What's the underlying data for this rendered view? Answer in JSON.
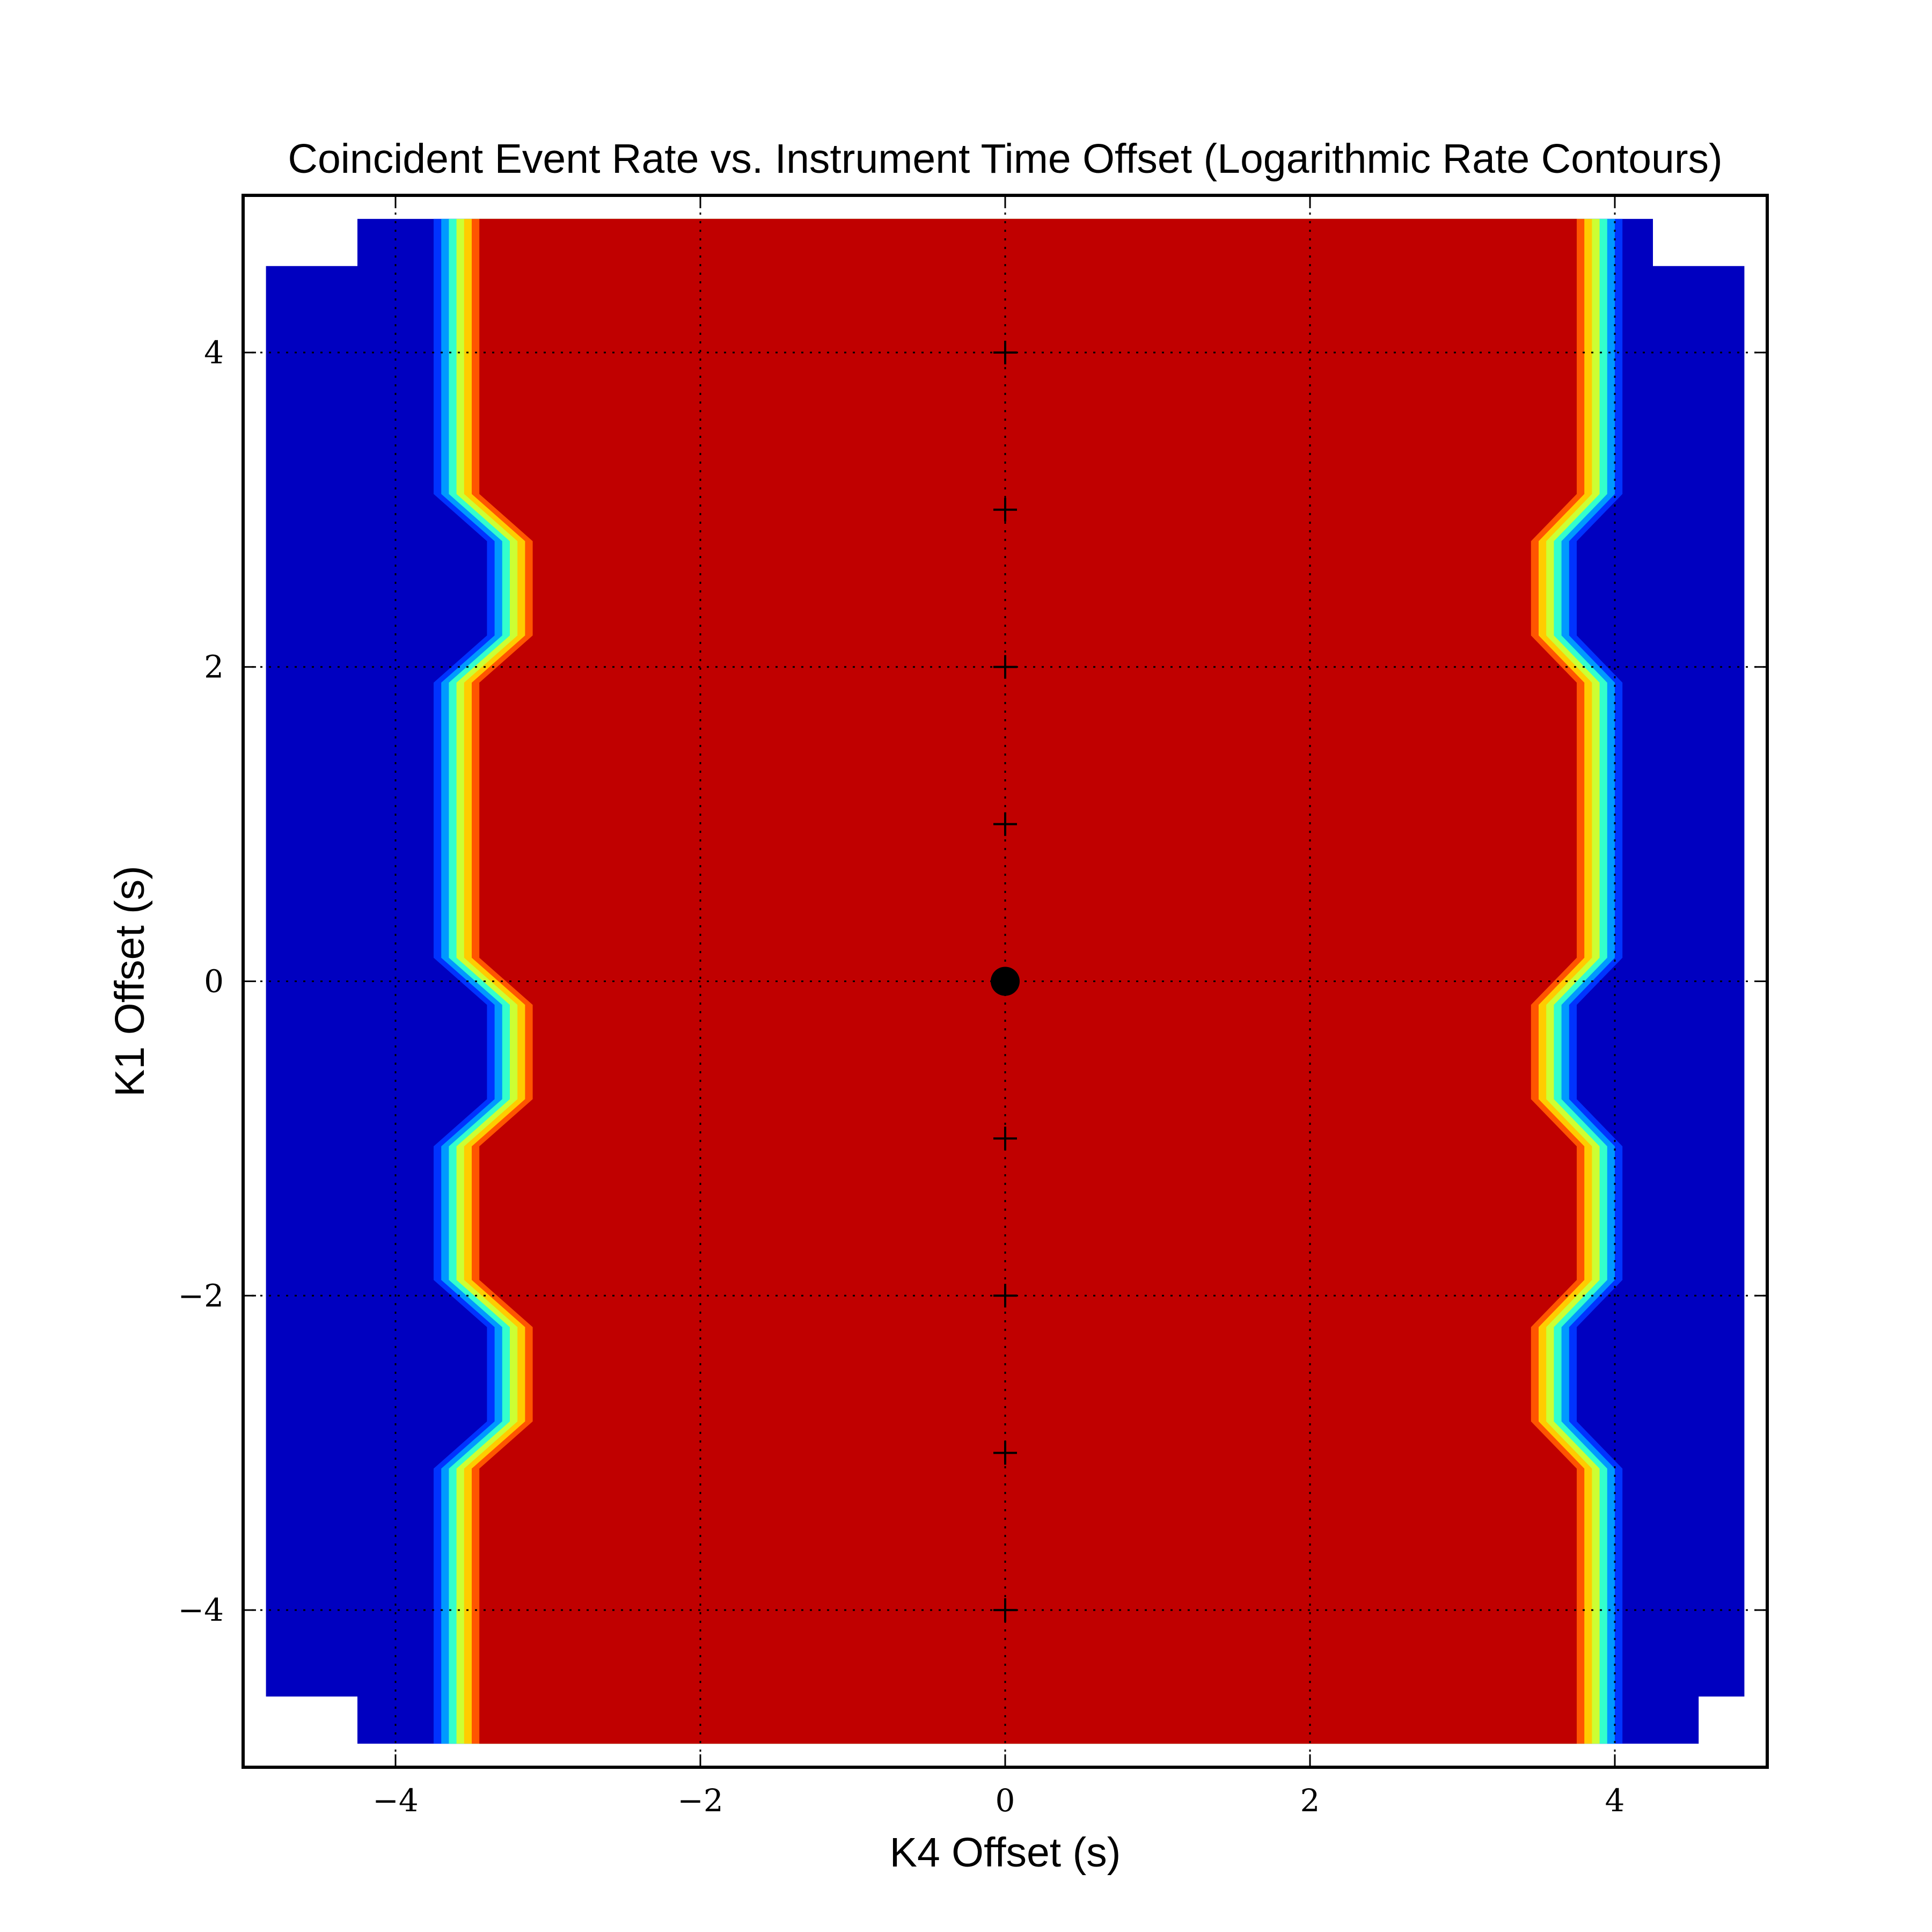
{
  "chart_data": {
    "type": "contour",
    "title": "Coincident Event Rate vs. Instrument Time Offset (Logarithmic Rate Contours)",
    "xlabel": "K4 Offset (s)",
    "ylabel": "K1 Offset (s)",
    "xlim": [
      -5,
      5
    ],
    "ylim": [
      -5,
      5
    ],
    "xticks": [
      -4,
      -2,
      0,
      2,
      4
    ],
    "yticks": [
      -4,
      -2,
      0,
      2,
      4
    ],
    "xtick_labels": [
      "−4",
      "−2",
      "0",
      "2",
      "4"
    ],
    "ytick_labels": [
      "−4",
      "−2",
      "0",
      "2",
      "4"
    ],
    "grid": true,
    "grid_style": "dotted",
    "colormap": "jet",
    "contour_levels": 8,
    "level_colors": [
      "#0000c0",
      "#0033ff",
      "#0099ff",
      "#33ffcc",
      "#ccff33",
      "#ffcc00",
      "#ff5500",
      "#c00000"
    ],
    "data_extent": {
      "outer_x": [
        -4.85,
        4.85
      ],
      "outer_y": [
        -4.55,
        4.55
      ],
      "inner_x": [
        -4.25,
        4.25
      ],
      "inner_y": [
        -4.85,
        4.85
      ]
    },
    "high_rate_boundary": {
      "left_x": [
        -3.45,
        -3.45,
        -3.1,
        -3.1,
        -3.45,
        -3.45,
        -3.1,
        -3.1,
        -3.45,
        -3.45,
        -3.1,
        -3.1,
        -3.45,
        -3.45
      ],
      "right_x": [
        3.75,
        3.75,
        3.45,
        3.45,
        3.75,
        3.75,
        3.45,
        3.45,
        3.75,
        3.75,
        3.45,
        3.45,
        3.75,
        3.75
      ],
      "y": [
        4.85,
        3.1,
        2.8,
        2.2,
        1.9,
        0.15,
        -0.15,
        -0.75,
        -1.05,
        -1.9,
        -2.2,
        -2.8,
        -3.1,
        -4.85
      ]
    },
    "plus_markers": {
      "x": [
        0,
        0,
        0,
        0,
        0,
        0,
        0,
        0
      ],
      "y": [
        4,
        3,
        2,
        1,
        -1,
        -2,
        -3,
        -4
      ],
      "marker": "+",
      "color": "#000000"
    },
    "dot_marker": {
      "x": 0,
      "y": 0,
      "marker": "o",
      "color": "#000000"
    }
  }
}
